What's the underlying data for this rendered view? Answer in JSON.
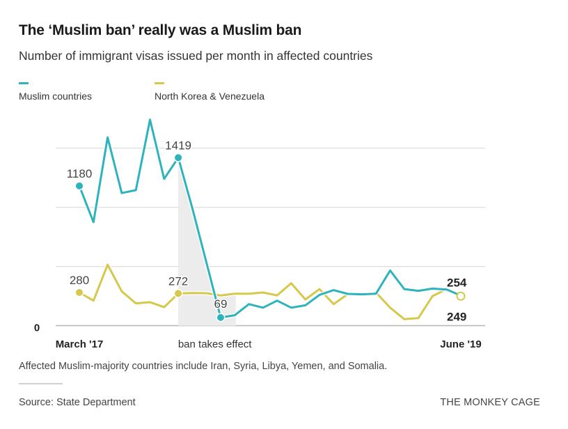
{
  "title": "The ‘Muslim ban’ really was a Muslim ban",
  "subtitle": "Number of immigrant visas issued per month in affected countries",
  "note": "Affected Muslim-majority countries include Iran, Syria, Libya, Yemen, and Somalia.",
  "source": "Source: State Department",
  "credit": "THE MONKEY CAGE",
  "colors": {
    "muslim": "#2db3bb",
    "nk_ven": "#d6c84a",
    "grid": "#dddddd",
    "baseline": "#bbbbbb",
    "shade": "#ececec"
  },
  "chart_data": {
    "type": "line",
    "title": "The ‘Muslim ban’ really was a Muslim ban",
    "subtitle": "Number of immigrant visas issued per month in affected countries",
    "xlabel": "",
    "ylabel": "",
    "x_range": [
      "March '17",
      "June '19"
    ],
    "x_tick_labels": [
      {
        "index": 0,
        "label": "March '17",
        "bold": true
      },
      {
        "index": 27,
        "label": "June '19",
        "bold": true
      }
    ],
    "annotation_ban": {
      "label": "ban takes effect",
      "start_index": 7,
      "end_index": 11
    },
    "y_ticks": [
      0,
      500,
      1000,
      1500
    ],
    "y_tick_labels": [
      "0"
    ],
    "ylim": [
      0,
      1800
    ],
    "grid": true,
    "legend_placement": "top-left",
    "series": [
      {
        "name": "Muslim countries",
        "color": "#2db3bb",
        "values": [
          1180,
          874,
          1590,
          1120,
          1145,
          1740,
          1240,
          1419,
          990,
          530,
          69,
          88,
          182,
          152,
          211,
          152,
          172,
          260,
          300,
          268,
          265,
          270,
          466,
          309,
          294,
          313,
          305,
          254
        ],
        "labels": [
          {
            "index": 0,
            "text": "1180",
            "pos": "above"
          },
          {
            "index": 7,
            "text": "1419",
            "pos": "above"
          },
          {
            "index": 10,
            "text": "69",
            "pos": "above"
          },
          {
            "index": 27,
            "text": "254",
            "pos": "above",
            "bold": true
          }
        ]
      },
      {
        "name": "North Korea & Venezuela",
        "color": "#d6c84a",
        "values": [
          280,
          211,
          515,
          290,
          188,
          198,
          156,
          272,
          276,
          274,
          255,
          270,
          270,
          280,
          256,
          358,
          221,
          309,
          182,
          266,
          260,
          280,
          152,
          55,
          64,
          250,
          309,
          249
        ],
        "labels": [
          {
            "index": 0,
            "text": "280",
            "pos": "above"
          },
          {
            "index": 7,
            "text": "272",
            "pos": "above"
          },
          {
            "index": 27,
            "text": "249",
            "pos": "below",
            "bold": true
          }
        ]
      }
    ]
  }
}
